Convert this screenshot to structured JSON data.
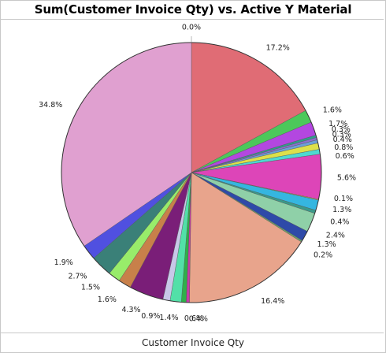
{
  "chart_data": {
    "type": "pie",
    "title": "Sum(Customer Invoice Qty) vs. Active Y Material",
    "xlabel": "Customer Invoice Qty",
    "legend": "none",
    "slices": [
      {
        "value": 0.0,
        "label": "0.0%",
        "color": "#d9b8b8"
      },
      {
        "value": 17.2,
        "label": "17.2%",
        "color": "#e06c75"
      },
      {
        "value": 1.6,
        "label": "1.6%",
        "color": "#4cc85a"
      },
      {
        "value": 1.7,
        "label": "1.7%",
        "color": "#b347e0"
      },
      {
        "value": 0.3,
        "label": "0.3%",
        "color": "#2f9e8c"
      },
      {
        "value": 0.3,
        "label": "0.3%",
        "color": "#8a6fd0"
      },
      {
        "value": 0.4,
        "label": "0.4%",
        "color": "#6aa0d8"
      },
      {
        "value": 0.8,
        "label": "0.8%",
        "color": "#dde04a"
      },
      {
        "value": 0.6,
        "label": "0.6%",
        "color": "#4fd8d0"
      },
      {
        "value": 5.6,
        "label": "5.6%",
        "color": "#dd45b8"
      },
      {
        "value": 0.1,
        "label": "0.1%",
        "color": "#d8c050"
      },
      {
        "value": 1.3,
        "label": "1.3%",
        "color": "#35b6e0"
      },
      {
        "value": 0.4,
        "label": "0.4%",
        "color": "#3a9a8a"
      },
      {
        "value": 2.4,
        "label": "2.4%",
        "color": "#8fd0a8"
      },
      {
        "value": 1.3,
        "label": "1.3%",
        "color": "#2e4aa8"
      },
      {
        "value": 0.2,
        "label": "0.2%",
        "color": "#6aa06a"
      },
      {
        "value": 16.4,
        "label": "16.4%",
        "color": "#e8a48c"
      },
      {
        "value": 0.4,
        "label": "0.4%",
        "color": "#c83aa8"
      },
      {
        "value": 0.6,
        "label": "0.6%",
        "color": "#2fb04a"
      },
      {
        "value": 1.4,
        "label": "1.4%",
        "color": "#52e0a8"
      },
      {
        "value": 0.9,
        "label": "0.9%",
        "color": "#c8c8e8"
      },
      {
        "value": 4.3,
        "label": "4.3%",
        "color": "#7a1e78"
      },
      {
        "value": 1.6,
        "label": "1.6%",
        "color": "#c8804a"
      },
      {
        "value": 1.5,
        "label": "1.5%",
        "color": "#98ec6a"
      },
      {
        "value": 2.7,
        "label": "2.7%",
        "color": "#3a8078"
      },
      {
        "value": 1.9,
        "label": "1.9%",
        "color": "#5050e0"
      },
      {
        "value": 34.8,
        "label": "34.8%",
        "color": "#e0a0d0"
      }
    ]
  }
}
